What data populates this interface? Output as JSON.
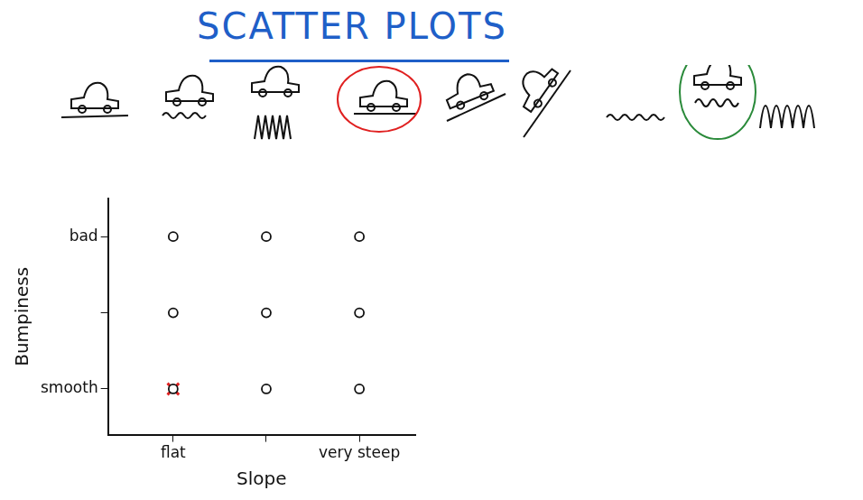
{
  "chart_data": {
    "type": "scatter",
    "title": "SCATTER PLOTS",
    "x_label": "Slope",
    "y_label": "Bumpiness",
    "xlim": [
      0.3,
      3.6
    ],
    "ylim": [
      0.4,
      3.5
    ],
    "xticks": [
      {
        "value": 1,
        "label": "flat"
      },
      {
        "value": 2,
        "label": null
      },
      {
        "value": 3,
        "label": "very steep"
      }
    ],
    "yticks": [
      {
        "value": 1,
        "label": "smooth"
      },
      {
        "value": 2,
        "label": null
      },
      {
        "value": 3,
        "label": "bad"
      }
    ],
    "grid": false,
    "series": [
      {
        "color": "#111111",
        "marker": "circle",
        "x": [
          1,
          2,
          3,
          1,
          2,
          3,
          1,
          2,
          3
        ],
        "values": [
          1,
          1,
          1,
          2,
          2,
          2,
          3,
          3,
          3
        ]
      },
      {
        "color": "#e02020",
        "marker": "x",
        "x": [
          1
        ],
        "values": [
          1
        ]
      }
    ]
  }
}
